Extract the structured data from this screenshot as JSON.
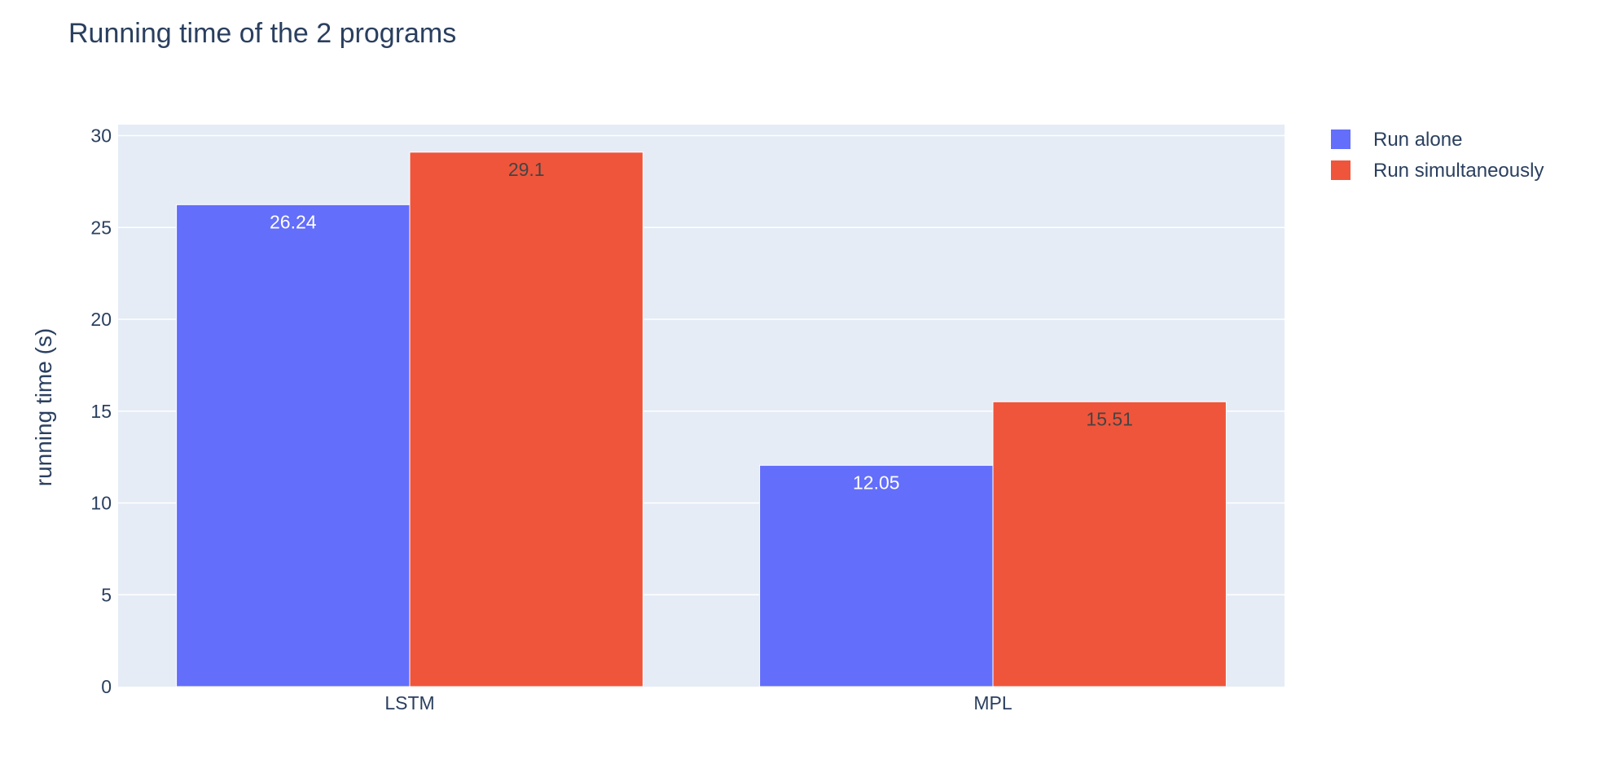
{
  "chart_data": {
    "type": "bar",
    "title": "Running time of the 2 programs",
    "xlabel": "",
    "ylabel": "running time (s)",
    "categories": [
      "LSTM",
      "MPL"
    ],
    "series": [
      {
        "name": "Run alone",
        "values": [
          26.24,
          12.05
        ],
        "labels": [
          "26.24",
          "12.05"
        ],
        "color": "#636efa",
        "label_color": "#ffffff"
      },
      {
        "name": "Run simultaneously",
        "values": [
          29.1,
          15.51
        ],
        "labels": [
          "29.1",
          "15.51"
        ],
        "color": "#ef553b",
        "label_color": "#444444"
      }
    ],
    "ylim": [
      0,
      30.6
    ],
    "yticks": [
      0,
      5,
      10,
      15,
      20,
      25,
      30
    ],
    "grid": true,
    "legend_position": "top-right",
    "plot_background": "#e5ecf6",
    "grid_color": "#ffffff",
    "text_color": "#2a3f5f"
  }
}
